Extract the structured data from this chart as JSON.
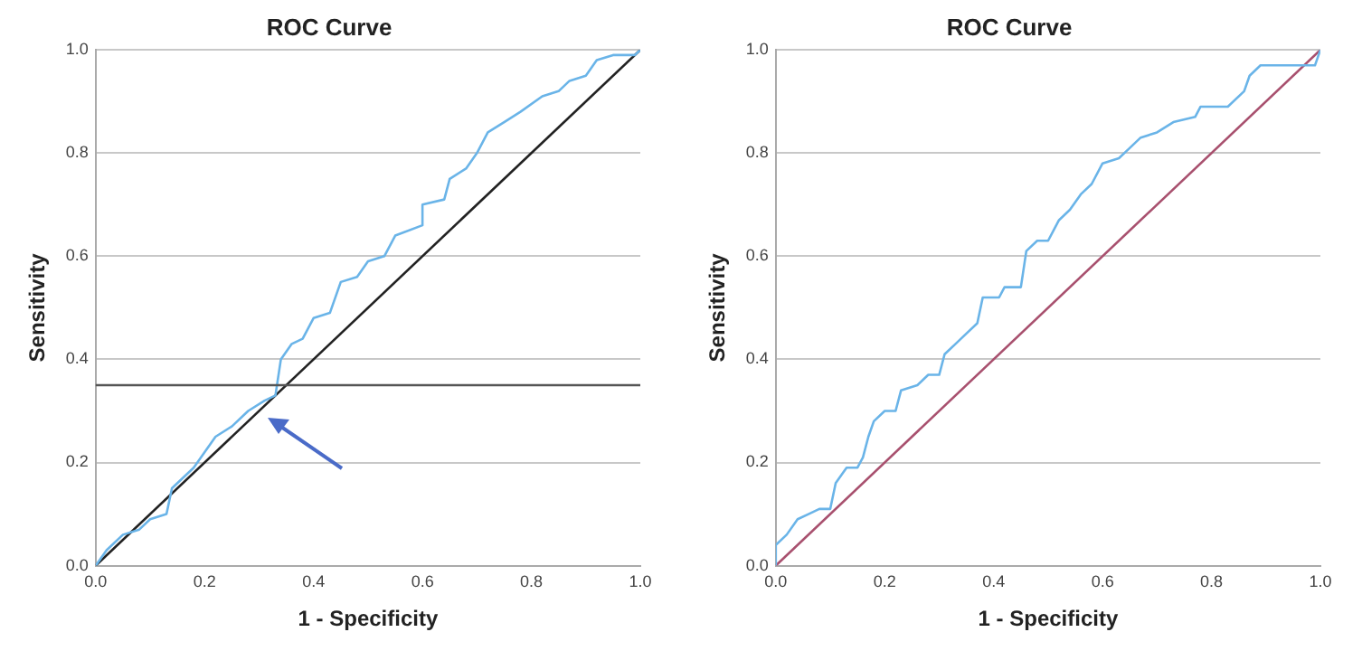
{
  "chart_data": [
    {
      "type": "line",
      "title": "ROC Curve",
      "xlabel": "1 - Specificity",
      "ylabel": "Sensitivity",
      "xlim": [
        0,
        1
      ],
      "ylim": [
        0,
        1
      ],
      "xticks": [
        {
          "value": 0,
          "label": "0.0"
        },
        {
          "value": 0.2,
          "label": "0.2"
        },
        {
          "value": 0.4,
          "label": "0.4"
        },
        {
          "value": 0.6,
          "label": "0.6"
        },
        {
          "value": 0.8,
          "label": "0.8"
        },
        {
          "value": 1,
          "label": "1.0"
        }
      ],
      "yticks": [
        {
          "value": 0,
          "label": "0.0"
        },
        {
          "value": 0.2,
          "label": "0.2"
        },
        {
          "value": 0.4,
          "label": "0.4"
        },
        {
          "value": 0.6,
          "label": "0.6"
        },
        {
          "value": 0.8,
          "label": "0.8"
        },
        {
          "value": 1,
          "label": "1.0"
        }
      ],
      "grid": "y",
      "legend": false,
      "marker": "none",
      "line_style": "solid",
      "ref_lines": [
        {
          "axis": "y",
          "value": 0.35,
          "color": "#555555"
        }
      ],
      "series": [
        {
          "color": "#6ab4e8",
          "x": [
            0,
            0.02,
            0.05,
            0.08,
            0.1,
            0.13,
            0.14,
            0.18,
            0.22,
            0.25,
            0.28,
            0.31,
            0.33,
            0.34,
            0.36,
            0.38,
            0.4,
            0.43,
            0.45,
            0.48,
            0.5,
            0.53,
            0.55,
            0.6,
            0.6,
            0.64,
            0.65,
            0.68,
            0.7,
            0.72,
            0.75,
            0.78,
            0.82,
            0.85,
            0.87,
            0.9,
            0.92,
            0.95,
            0.99,
            1
          ],
          "values": [
            0,
            0.03,
            0.06,
            0.07,
            0.09,
            0.1,
            0.15,
            0.19,
            0.25,
            0.27,
            0.3,
            0.32,
            0.33,
            0.4,
            0.43,
            0.44,
            0.48,
            0.49,
            0.55,
            0.56,
            0.59,
            0.6,
            0.64,
            0.66,
            0.7,
            0.71,
            0.75,
            0.77,
            0.8,
            0.84,
            0.86,
            0.88,
            0.91,
            0.92,
            0.94,
            0.95,
            0.98,
            0.99,
            0.99,
            1
          ]
        },
        {
          "color": "#222222",
          "x": [
            0,
            1
          ],
          "values": [
            0,
            1
          ]
        }
      ]
    },
    {
      "type": "line",
      "title": "ROC Curve",
      "xlabel": "1 - Specificity",
      "ylabel": "Sensitivity",
      "xlim": [
        0,
        1
      ],
      "ylim": [
        0,
        1
      ],
      "xticks": [
        {
          "value": 0,
          "label": "0.0"
        },
        {
          "value": 0.2,
          "label": "0.2"
        },
        {
          "value": 0.4,
          "label": "0.4"
        },
        {
          "value": 0.6,
          "label": "0.6"
        },
        {
          "value": 0.8,
          "label": "0.8"
        },
        {
          "value": 1,
          "label": "1.0"
        }
      ],
      "yticks": [
        {
          "value": 0,
          "label": "0.0"
        },
        {
          "value": 0.2,
          "label": "0.2"
        },
        {
          "value": 0.4,
          "label": "0.4"
        },
        {
          "value": 0.6,
          "label": "0.6"
        },
        {
          "value": 0.8,
          "label": "0.8"
        },
        {
          "value": 1,
          "label": "1.0"
        }
      ],
      "grid": "y",
      "legend": false,
      "marker": "none",
      "line_style": "solid",
      "series": [
        {
          "color": "#6ab4e8",
          "x": [
            0,
            0,
            0.02,
            0.04,
            0.06,
            0.08,
            0.1,
            0.11,
            0.13,
            0.15,
            0.16,
            0.17,
            0.18,
            0.2,
            0.22,
            0.23,
            0.26,
            0.27,
            0.28,
            0.3,
            0.31,
            0.33,
            0.35,
            0.37,
            0.38,
            0.41,
            0.42,
            0.45,
            0.46,
            0.48,
            0.5,
            0.52,
            0.54,
            0.56,
            0.58,
            0.6,
            0.63,
            0.65,
            0.67,
            0.7,
            0.73,
            0.77,
            0.78,
            0.83,
            0.86,
            0.87,
            0.89,
            0.99,
            1
          ],
          "values": [
            0,
            0.04,
            0.06,
            0.09,
            0.1,
            0.11,
            0.11,
            0.16,
            0.19,
            0.19,
            0.21,
            0.25,
            0.28,
            0.3,
            0.3,
            0.34,
            0.35,
            0.36,
            0.37,
            0.37,
            0.41,
            0.43,
            0.45,
            0.47,
            0.52,
            0.52,
            0.54,
            0.54,
            0.61,
            0.63,
            0.63,
            0.67,
            0.69,
            0.72,
            0.74,
            0.78,
            0.79,
            0.81,
            0.83,
            0.84,
            0.86,
            0.87,
            0.89,
            0.89,
            0.92,
            0.95,
            0.97,
            0.97,
            1
          ]
        },
        {
          "color": "#a8506e",
          "x": [
            0,
            1
          ],
          "values": [
            0,
            1
          ]
        }
      ]
    }
  ]
}
